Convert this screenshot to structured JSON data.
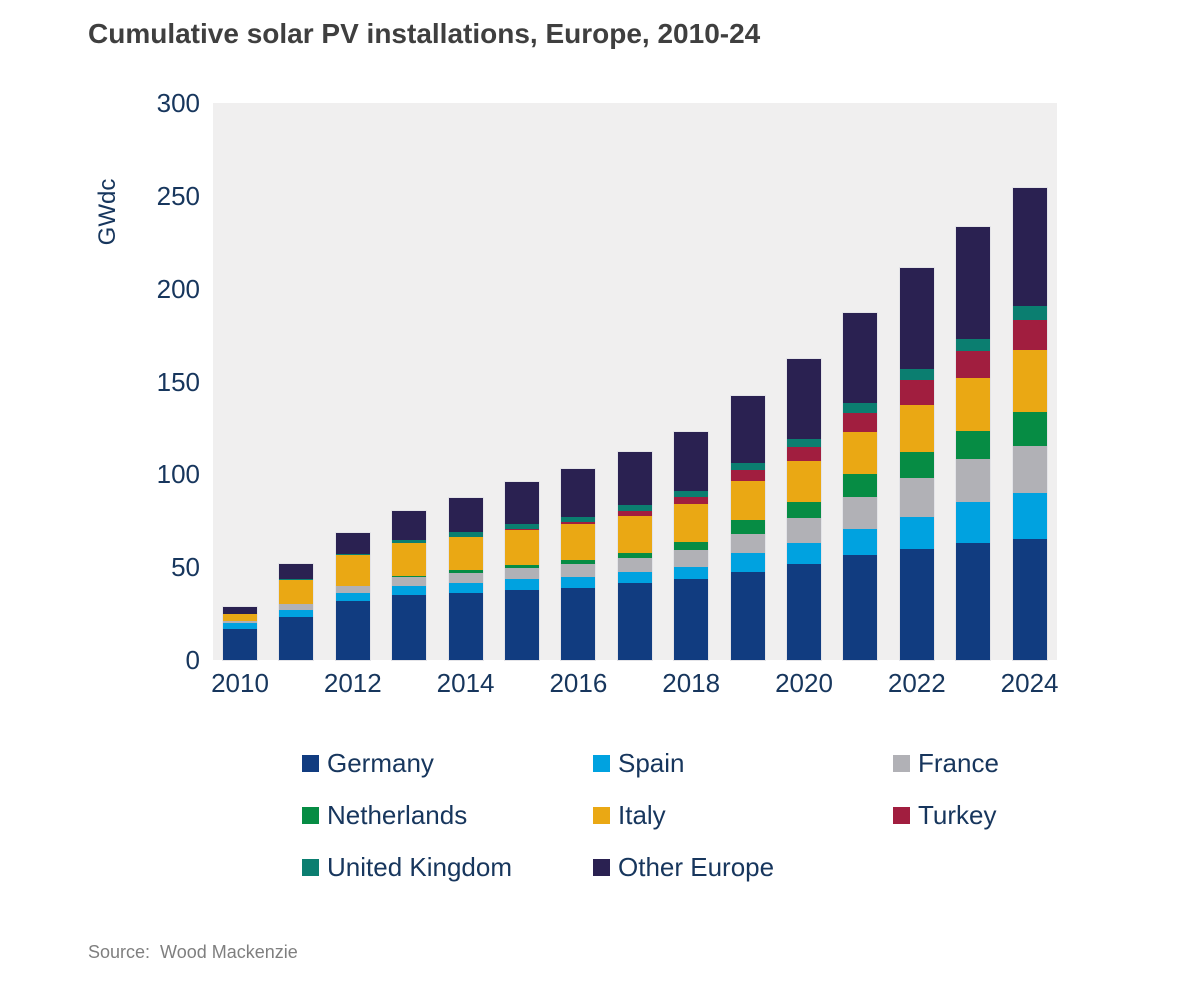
{
  "header": {
    "title": "Cumulative solar PV installations, Europe, 2010-24"
  },
  "footer": {
    "source_label": "Source:",
    "source_value": "Wood Mackenzie"
  },
  "colors": {
    "page_bg": "#ffffff",
    "plot_bg": "#f0efef",
    "title_text": "#3f3f3f",
    "axis_text": "#17365d",
    "source_text": "#7f7f7f"
  },
  "chart_data": {
    "type": "bar",
    "stacked": true,
    "title": "Cumulative solar PV installations, Europe, 2010-24",
    "xlabel": "",
    "ylabel": "GWdc",
    "ylim": [
      0,
      300
    ],
    "yticks": [
      0,
      50,
      100,
      150,
      200,
      250,
      300
    ],
    "grid": false,
    "legend_position": "bottom",
    "categories": [
      2010,
      2011,
      2012,
      2013,
      2014,
      2015,
      2016,
      2017,
      2018,
      2019,
      2020,
      2021,
      2022,
      2023,
      2024
    ],
    "xtick_labels": [
      "2010",
      "2012",
      "2014",
      "2016",
      "2018",
      "2020",
      "2022",
      "2024"
    ],
    "series": [
      {
        "name": "Germany",
        "color": "#113c80",
        "values": [
          16.8,
          23.0,
          31.5,
          34.8,
          36.0,
          37.5,
          38.6,
          41.3,
          43.5,
          47.3,
          51.6,
          56.5,
          59.8,
          63.0,
          65.2
        ]
      },
      {
        "name": "Spain",
        "color": "#00a2e0",
        "values": [
          3.3,
          3.8,
          4.4,
          4.9,
          5.4,
          5.9,
          6.1,
          6.3,
          6.8,
          10.3,
          11.4,
          14.1,
          17.4,
          22.3,
          24.5
        ]
      },
      {
        "name": "France",
        "color": "#b1b1b6",
        "values": [
          0.9,
          3.3,
          3.8,
          4.9,
          5.7,
          6.2,
          6.8,
          7.3,
          8.7,
          10.3,
          13.6,
          17.4,
          20.7,
          22.8,
          25.5
        ]
      },
      {
        "name": "Netherlands",
        "color": "#068c44",
        "values": [
          0.1,
          0.2,
          0.4,
          0.7,
          1.1,
          1.8,
          2.4,
          2.9,
          4.3,
          7.6,
          8.7,
          12.0,
          14.1,
          15.2,
          18.5
        ]
      },
      {
        "name": "Italy",
        "color": "#eaa814",
        "values": [
          3.6,
          13.0,
          16.5,
          17.6,
          18.2,
          18.7,
          19.3,
          19.9,
          20.5,
          21.0,
          21.7,
          22.6,
          25.1,
          28.5,
          33.0
        ]
      },
      {
        "name": "Turkey",
        "color": "#a11e3f",
        "values": [
          0.0,
          0.0,
          0.0,
          0.0,
          0.1,
          0.3,
          1.0,
          2.7,
          3.8,
          6.0,
          7.6,
          10.3,
          13.6,
          14.5,
          16.3
        ]
      },
      {
        "name": "United Kingdom",
        "color": "#0b7e70",
        "values": [
          0.1,
          0.2,
          0.5,
          1.6,
          2.4,
          2.8,
          3.0,
          3.2,
          3.4,
          3.8,
          4.2,
          5.4,
          5.8,
          6.5,
          7.6
        ]
      },
      {
        "name": "Other Europe",
        "color": "#2a2151",
        "values": [
          3.5,
          8.0,
          11.4,
          15.5,
          18.1,
          22.8,
          25.8,
          28.4,
          32.0,
          35.7,
          43.2,
          48.7,
          54.5,
          60.2,
          63.4
        ]
      }
    ],
    "totals": [
      28.3,
      51.5,
      68.5,
      80.0,
      87.0,
      96.0,
      103.0,
      112.0,
      123.0,
      142.0,
      162.0,
      187.0,
      211.0,
      233.0,
      254.0
    ]
  }
}
